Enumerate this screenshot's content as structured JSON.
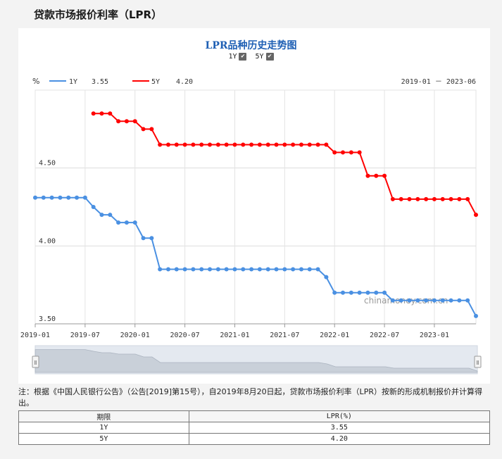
{
  "page": {
    "title": "贷款市场报价利率（LPR）"
  },
  "chart_header": {
    "title": "LPR品种历史走势图",
    "toggles": [
      {
        "label": "1Y",
        "checked": true,
        "check_glyph": "✔"
      },
      {
        "label": "5Y",
        "checked": true,
        "check_glyph": "✔"
      }
    ],
    "y_unit": "%",
    "date_range": "2019-01 － 2023-06",
    "watermark": "chinamoney.com.cn",
    "legend": [
      {
        "name": "1Y",
        "value": "3.55",
        "color": "#4a90e2"
      },
      {
        "name": "5Y",
        "value": "4.20",
        "color": "#ff0000"
      }
    ]
  },
  "chart_data": {
    "type": "line",
    "x_labels": [
      "2019-01",
      "2019-07",
      "2020-01",
      "2020-07",
      "2021-01",
      "2021-07",
      "2022-01",
      "2022-07",
      "2023-01"
    ],
    "y_ticks": [
      "3.50",
      "4.00",
      "4.50"
    ],
    "ylim": [
      3.5,
      5.0
    ],
    "xlim": [
      "2019-01",
      "2023-06"
    ],
    "grid": true,
    "series": [
      {
        "name": "1Y",
        "color": "#4a90e2",
        "x": [
          "2019-01",
          "2019-02",
          "2019-03",
          "2019-04",
          "2019-05",
          "2019-06",
          "2019-07",
          "2019-08",
          "2019-09",
          "2019-10",
          "2019-11",
          "2019-12",
          "2020-01",
          "2020-02",
          "2020-03",
          "2020-04",
          "2020-05",
          "2020-06",
          "2020-07",
          "2020-08",
          "2020-09",
          "2020-10",
          "2020-11",
          "2020-12",
          "2021-01",
          "2021-02",
          "2021-03",
          "2021-04",
          "2021-05",
          "2021-06",
          "2021-07",
          "2021-08",
          "2021-09",
          "2021-10",
          "2021-11",
          "2021-12",
          "2022-01",
          "2022-02",
          "2022-03",
          "2022-04",
          "2022-05",
          "2022-06",
          "2022-07",
          "2022-08",
          "2022-09",
          "2022-10",
          "2022-11",
          "2022-12",
          "2023-01",
          "2023-02",
          "2023-03",
          "2023-04",
          "2023-05",
          "2023-06"
        ],
        "values": [
          4.31,
          4.31,
          4.31,
          4.31,
          4.31,
          4.31,
          4.31,
          4.25,
          4.2,
          4.2,
          4.15,
          4.15,
          4.15,
          4.05,
          4.05,
          3.85,
          3.85,
          3.85,
          3.85,
          3.85,
          3.85,
          3.85,
          3.85,
          3.85,
          3.85,
          3.85,
          3.85,
          3.85,
          3.85,
          3.85,
          3.85,
          3.85,
          3.85,
          3.85,
          3.85,
          3.8,
          3.7,
          3.7,
          3.7,
          3.7,
          3.7,
          3.7,
          3.7,
          3.65,
          3.65,
          3.65,
          3.65,
          3.65,
          3.65,
          3.65,
          3.65,
          3.65,
          3.65,
          3.55
        ]
      },
      {
        "name": "5Y",
        "color": "#ff0000",
        "x": [
          "2019-08",
          "2019-09",
          "2019-10",
          "2019-11",
          "2019-12",
          "2020-01",
          "2020-02",
          "2020-03",
          "2020-04",
          "2020-05",
          "2020-06",
          "2020-07",
          "2020-08",
          "2020-09",
          "2020-10",
          "2020-11",
          "2020-12",
          "2021-01",
          "2021-02",
          "2021-03",
          "2021-04",
          "2021-05",
          "2021-06",
          "2021-07",
          "2021-08",
          "2021-09",
          "2021-10",
          "2021-11",
          "2021-12",
          "2022-01",
          "2022-02",
          "2022-03",
          "2022-04",
          "2022-05",
          "2022-06",
          "2022-07",
          "2022-08",
          "2022-09",
          "2022-10",
          "2022-11",
          "2022-12",
          "2023-01",
          "2023-02",
          "2023-03",
          "2023-04",
          "2023-05",
          "2023-06"
        ],
        "values": [
          4.85,
          4.85,
          4.85,
          4.8,
          4.8,
          4.8,
          4.75,
          4.75,
          4.65,
          4.65,
          4.65,
          4.65,
          4.65,
          4.65,
          4.65,
          4.65,
          4.65,
          4.65,
          4.65,
          4.65,
          4.65,
          4.65,
          4.65,
          4.65,
          4.65,
          4.65,
          4.65,
          4.65,
          4.65,
          4.6,
          4.6,
          4.6,
          4.6,
          4.45,
          4.45,
          4.45,
          4.3,
          4.3,
          4.3,
          4.3,
          4.3,
          4.3,
          4.3,
          4.3,
          4.3,
          4.3,
          4.2
        ]
      }
    ]
  },
  "navigator": {
    "handle_glyph": "Ⅱ"
  },
  "note": "注：根据《中国人民银行公告》（公告[2019]第15号），自2019年8月20日起，贷款市场报价利率（LPR）按新的形成机制报价并计算得出。",
  "table": {
    "headers": [
      "期限",
      "LPR(%)"
    ],
    "rows": [
      [
        "1Y",
        "3.55"
      ],
      [
        "5Y",
        "4.20"
      ]
    ]
  }
}
